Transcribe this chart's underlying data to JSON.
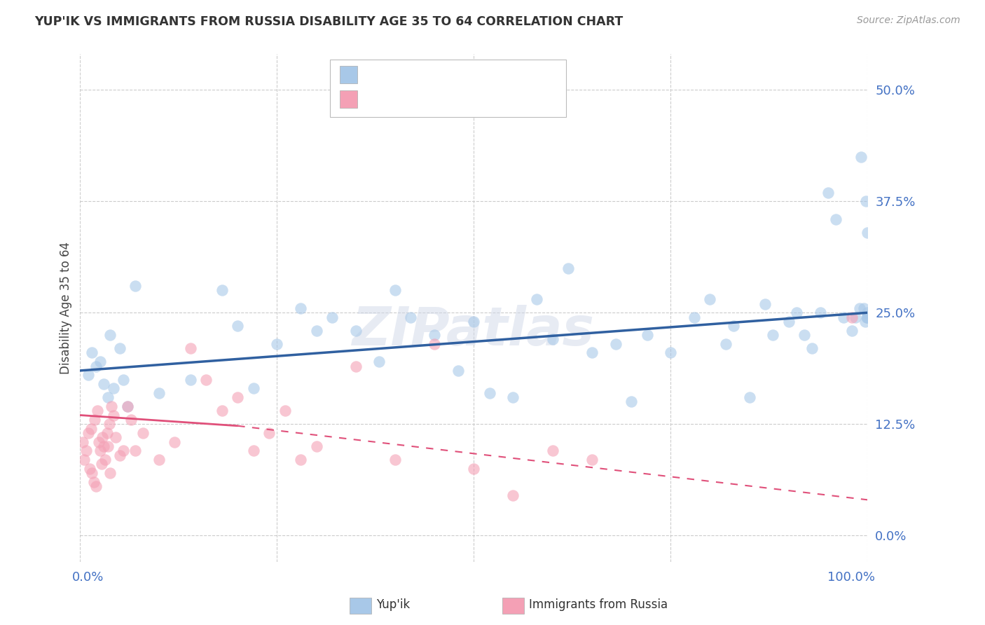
{
  "title": "YUP'IK VS IMMIGRANTS FROM RUSSIA DISABILITY AGE 35 TO 64 CORRELATION CHART",
  "source": "Source: ZipAtlas.com",
  "ylabel": "Disability Age 35 to 64",
  "ytick_values": [
    0.0,
    12.5,
    25.0,
    37.5,
    50.0
  ],
  "xlim": [
    0.0,
    100.0
  ],
  "ylim": [
    -3.0,
    54.0
  ],
  "color_blue": "#a8c8e8",
  "color_pink": "#f4a0b5",
  "line_color_blue": "#3060a0",
  "line_color_pink": "#e0507a",
  "watermark": "ZIPatlas",
  "blue_scatter_x": [
    1.0,
    1.5,
    2.0,
    2.5,
    3.0,
    3.5,
    3.8,
    4.2,
    5.0,
    5.5,
    6.0,
    7.0,
    10.0,
    14.0,
    18.0,
    20.0,
    22.0,
    25.0,
    28.0,
    30.0,
    32.0,
    35.0,
    38.0,
    40.0,
    42.0,
    45.0,
    48.0,
    50.0,
    52.0,
    55.0,
    58.0,
    60.0,
    62.0,
    65.0,
    68.0,
    70.0,
    72.0,
    75.0,
    78.0,
    80.0,
    82.0,
    83.0,
    85.0,
    87.0,
    88.0,
    90.0,
    91.0,
    92.0,
    93.0,
    94.0,
    95.0,
    96.0,
    97.0,
    98.0,
    98.5,
    99.0,
    99.2,
    99.5,
    99.7,
    99.8,
    99.9,
    99.95,
    99.98,
    100.0,
    100.0
  ],
  "blue_scatter_y": [
    18.0,
    20.5,
    19.0,
    19.5,
    17.0,
    15.5,
    22.5,
    16.5,
    21.0,
    17.5,
    14.5,
    28.0,
    16.0,
    17.5,
    27.5,
    23.5,
    16.5,
    21.5,
    25.5,
    23.0,
    24.5,
    23.0,
    19.5,
    27.5,
    24.5,
    22.5,
    18.5,
    24.0,
    16.0,
    15.5,
    26.5,
    22.0,
    30.0,
    20.5,
    21.5,
    15.0,
    22.5,
    20.5,
    24.5,
    26.5,
    21.5,
    23.5,
    15.5,
    26.0,
    22.5,
    24.0,
    25.0,
    22.5,
    21.0,
    25.0,
    38.5,
    35.5,
    24.5,
    23.0,
    24.5,
    25.5,
    42.5,
    25.5,
    24.0,
    37.5,
    24.5,
    25.0,
    34.0,
    24.5,
    24.5
  ],
  "pink_scatter_x": [
    0.3,
    0.5,
    0.8,
    1.0,
    1.2,
    1.4,
    1.5,
    1.7,
    1.8,
    2.0,
    2.2,
    2.4,
    2.5,
    2.7,
    2.8,
    3.0,
    3.2,
    3.4,
    3.5,
    3.7,
    3.8,
    4.0,
    4.2,
    4.5,
    5.0,
    5.5,
    6.0,
    6.5,
    7.0,
    8.0,
    10.0,
    12.0,
    14.0,
    16.0,
    18.0,
    20.0,
    22.0,
    24.0,
    26.0,
    28.0,
    30.0,
    35.0,
    40.0,
    45.0,
    50.0,
    55.0,
    60.0,
    65.0,
    98.0
  ],
  "pink_scatter_y": [
    10.5,
    8.5,
    9.5,
    11.5,
    7.5,
    12.0,
    7.0,
    6.0,
    13.0,
    5.5,
    14.0,
    10.5,
    9.5,
    8.0,
    11.0,
    10.0,
    8.5,
    11.5,
    10.0,
    12.5,
    7.0,
    14.5,
    13.5,
    11.0,
    9.0,
    9.5,
    14.5,
    13.0,
    9.5,
    11.5,
    8.5,
    10.5,
    21.0,
    17.5,
    14.0,
    15.5,
    9.5,
    11.5,
    14.0,
    8.5,
    10.0,
    19.0,
    8.5,
    21.5,
    7.5,
    4.5,
    9.5,
    8.5,
    24.5
  ],
  "blue_line_x0": 0.0,
  "blue_line_x1": 100.0,
  "blue_line_y0": 18.5,
  "blue_line_y1": 25.0,
  "pink_solid_x0": 0.0,
  "pink_solid_x1": 20.0,
  "pink_solid_y0": 13.5,
  "pink_solid_y1": 12.3,
  "pink_dash_x0": 20.0,
  "pink_dash_x1": 100.0,
  "pink_dash_y0": 12.3,
  "pink_dash_y1": 4.0
}
